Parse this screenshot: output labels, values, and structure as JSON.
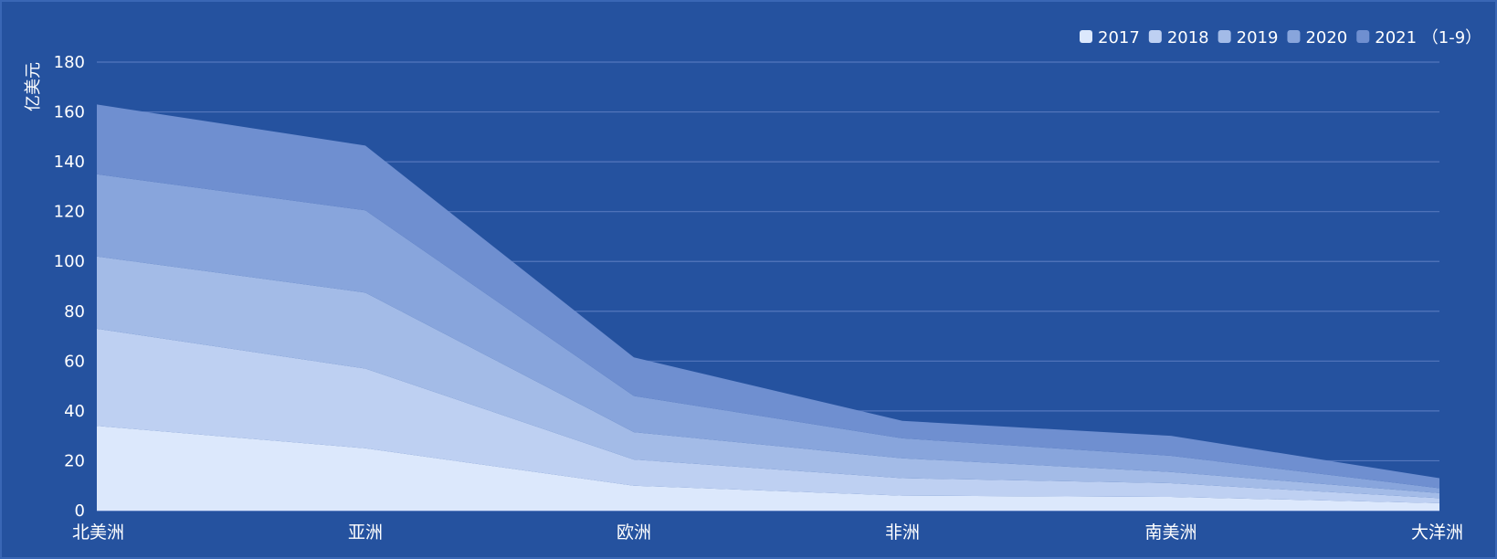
{
  "chart_data": {
    "type": "area",
    "stacked": true,
    "title": "",
    "xlabel": "",
    "ylabel": "亿美元",
    "ylim": [
      0,
      180
    ],
    "yticks": [
      0,
      20,
      40,
      60,
      80,
      100,
      120,
      140,
      160,
      180
    ],
    "grid": true,
    "legend_position": "top-right",
    "categories": [
      "北美洲",
      "亚洲",
      "欧洲",
      "非洲",
      "南美洲",
      "大洋洲"
    ],
    "series": [
      {
        "name": "2017",
        "color": "#dce8fc",
        "values": [
          34,
          25,
          10,
          6,
          5.5,
          3
        ]
      },
      {
        "name": "2018",
        "color": "#bed0f2",
        "values": [
          39,
          32,
          10.5,
          7,
          5.5,
          2
        ]
      },
      {
        "name": "2019",
        "color": "#a3bbe7",
        "values": [
          29,
          30.5,
          11,
          8,
          4.5,
          2
        ]
      },
      {
        "name": "2020",
        "color": "#88a5dc",
        "values": [
          33,
          33,
          14.5,
          8,
          6.5,
          2
        ]
      },
      {
        "name": "2021 （1-9）",
        "color": "#6f8fd0",
        "values": [
          28,
          26,
          15.5,
          7,
          8,
          4
        ]
      }
    ]
  }
}
